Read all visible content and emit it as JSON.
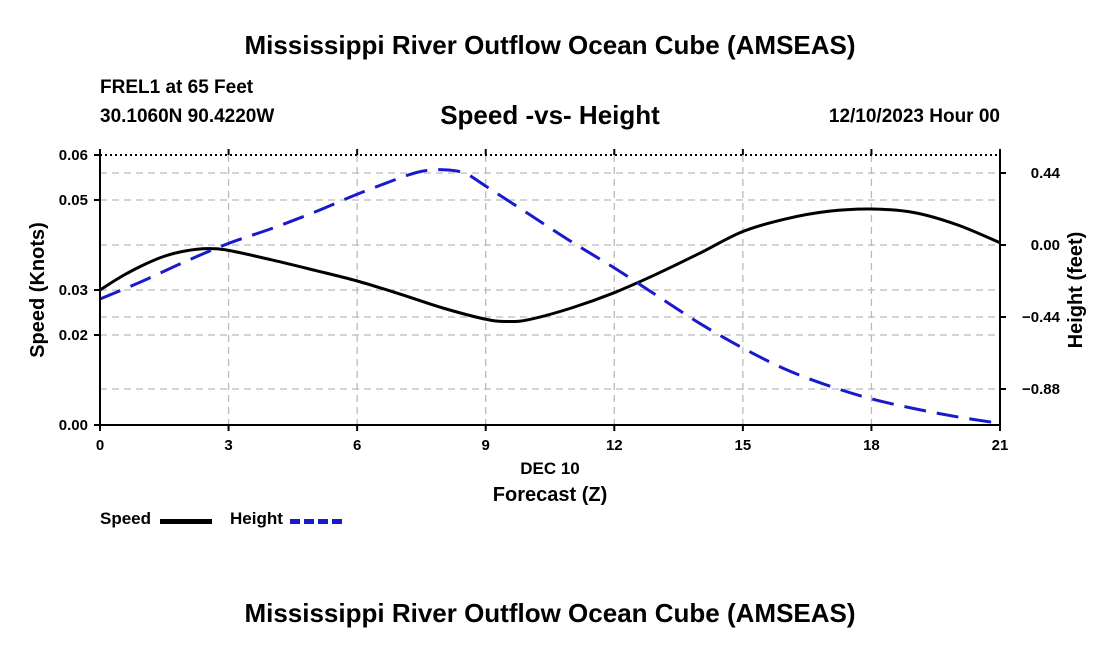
{
  "header": {
    "title": "Mississippi River Outflow Ocean Cube (AMSEAS)",
    "station": "FREL1 at 65 Feet",
    "coords": "30.1060N  90.4220W",
    "subtitle": "Speed -vs- Height",
    "datetime": "12/10/2023 Hour 00"
  },
  "footer": {
    "title": "Mississippi River Outflow Ocean Cube (AMSEAS)"
  },
  "legend": {
    "speed_label": "Speed",
    "height_label": "Height"
  },
  "colors": {
    "speed": "#000000",
    "height": "#1a1acc",
    "grid": "#bbbbbb"
  },
  "chart_data": {
    "type": "line",
    "title": "Speed -vs- Height",
    "xlabel": "Forecast (Z)",
    "xlabel_date": "DEC 10",
    "ylabel": "Speed (Knots)",
    "y2label": "Height (feet)",
    "xlim": [
      0,
      21
    ],
    "ylim": [
      0.0,
      0.06
    ],
    "y2lim": [
      -1.1,
      0.55
    ],
    "x_ticks": [
      0,
      3,
      6,
      9,
      12,
      15,
      18,
      21
    ],
    "x_tick_labels": [
      "0",
      "3",
      "6",
      "9",
      "12",
      "15",
      "18",
      "21"
    ],
    "y_ticks": [
      0.0,
      0.02,
      0.03,
      0.05,
      0.06
    ],
    "y_tick_labels": [
      "0.00",
      "0.02",
      "0.03",
      "0.05",
      "0.06"
    ],
    "y2_ticks": [
      0.44,
      0.0,
      -0.44,
      -0.88
    ],
    "y2_tick_labels": [
      "0.44",
      "0.00",
      "−0.44",
      "−0.88"
    ],
    "grid": true,
    "series": [
      {
        "name": "Speed",
        "axis": "left",
        "style": "solid",
        "x": [
          0,
          0.5,
          1,
          1.5,
          2,
          2.5,
          3,
          4,
          5,
          6,
          7,
          8,
          9,
          9.5,
          10,
          11,
          12,
          13,
          14,
          15,
          16,
          17,
          18,
          19,
          20,
          21
        ],
        "values": [
          0.03,
          0.033,
          0.0355,
          0.0375,
          0.0387,
          0.0392,
          0.0388,
          0.0367,
          0.0344,
          0.032,
          0.0291,
          0.026,
          0.0235,
          0.023,
          0.0234,
          0.026,
          0.0294,
          0.0336,
          0.0382,
          0.043,
          0.0458,
          0.0475,
          0.048,
          0.0472,
          0.0445,
          0.0405
        ]
      },
      {
        "name": "Height",
        "axis": "right",
        "style": "dashed",
        "x": [
          0,
          1,
          2,
          3,
          4,
          5,
          6,
          7,
          7.5,
          8,
          8.5,
          9,
          10,
          11,
          12,
          13,
          14,
          15,
          16,
          17,
          18,
          19,
          20,
          21
        ],
        "values": [
          -0.33,
          -0.22,
          -0.1,
          0.01,
          0.1,
          0.2,
          0.31,
          0.41,
          0.45,
          0.46,
          0.44,
          0.36,
          0.19,
          0.02,
          -0.14,
          -0.31,
          -0.48,
          -0.63,
          -0.76,
          -0.86,
          -0.94,
          -1.0,
          -1.05,
          -1.09
        ]
      }
    ]
  }
}
